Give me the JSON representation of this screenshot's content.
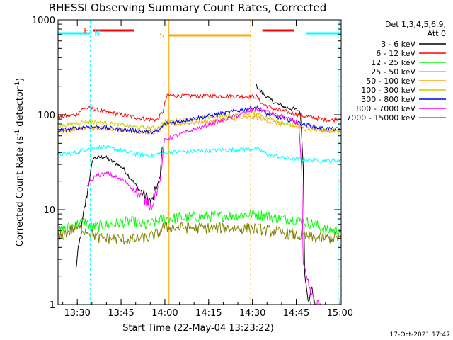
{
  "chart_data": {
    "type": "line",
    "title": "RHESSI Observing Summary Count Rates, Corrected",
    "xlabel": "Start Time (22-May-04 13:23:22)",
    "ylabel_main": "Corrected Count Rate (s",
    "ylabel_exp1": "-1",
    "ylabel_mid": " detector",
    "ylabel_exp2": "-1",
    "ylabel_end": ")",
    "yscale": "log",
    "ylim": [
      1,
      1000
    ],
    "xlim_minutes": [
      0,
      97
    ],
    "x_unit": "minutes since 13:23:22",
    "x_ticks": [
      {
        "label": "13:30",
        "value": 6.6
      },
      {
        "label": "13:45",
        "value": 21.6
      },
      {
        "label": "14:00",
        "value": 36.6
      },
      {
        "label": "14:15",
        "value": 51.6
      },
      {
        "label": "14:30",
        "value": 66.6
      },
      {
        "label": "14:45",
        "value": 81.6
      },
      {
        "label": "15:00",
        "value": 96.6
      }
    ],
    "y_ticks": [
      {
        "label": "1",
        "value": 1
      },
      {
        "label": "10",
        "value": 10
      },
      {
        "label": "100",
        "value": 100
      },
      {
        "label": "1000",
        "value": 1000
      }
    ],
    "legend_header": [
      "Det 1,3,4,5,6,9,",
      "Att 0"
    ],
    "legend_position": "right",
    "series": [
      {
        "name": "3 - 6 keV",
        "color": "#000000",
        "x": [
          0,
          6,
          9,
          12,
          16,
          22,
          28,
          32,
          35,
          36,
          37,
          68,
          70,
          72,
          75,
          78,
          82,
          83,
          84,
          84.5,
          85,
          86,
          87,
          88
        ],
        "y": [
          null,
          2.3,
          10,
          35,
          36,
          28,
          16,
          12,
          22,
          70,
          null,
          200,
          170,
          150,
          130,
          120,
          112,
          108,
          30,
          2.2,
          1.8,
          1,
          1.6,
          1
        ]
      },
      {
        "name": "6 - 12 keV",
        "color": "#ff0000",
        "x": [
          0,
          6,
          9,
          12,
          16,
          22,
          28,
          34,
          36,
          37.3,
          68,
          70,
          74,
          78,
          82,
          86,
          90,
          94,
          97
        ],
        "y": [
          95,
          100,
          118,
          115,
          108,
          100,
          92,
          88,
          110,
          160,
          155,
          130,
          115,
          108,
          100,
          95,
          90,
          88,
          92
        ]
      },
      {
        "name": "12 - 25 keV",
        "color": "#00ff00",
        "x": [
          0,
          6,
          9,
          12,
          18,
          25,
          30,
          34,
          36,
          68,
          72,
          76,
          80,
          84,
          88,
          90,
          92,
          97
        ],
        "y": [
          5.8,
          7,
          7.5,
          6.5,
          7,
          7.5,
          6.8,
          7.5,
          8,
          9,
          8.5,
          8,
          8,
          7.5,
          7,
          6.5,
          6,
          6.2
        ]
      },
      {
        "name": "25 - 50 keV",
        "color": "#00ffff",
        "x": [
          0,
          6,
          10,
          15,
          20,
          26,
          32,
          36,
          68,
          72,
          78,
          84,
          90,
          97
        ],
        "y": [
          38,
          40,
          44,
          46,
          43,
          39,
          37,
          40,
          44,
          38,
          35,
          34,
          33,
          33
        ]
      },
      {
        "name": "50 - 100 keV",
        "color": "#ffa500",
        "x": [
          0,
          6,
          10,
          16,
          22,
          28,
          34,
          36.5,
          68,
          72,
          78,
          84,
          90,
          97
        ],
        "y": [
          66,
          70,
          73,
          72,
          70,
          66,
          65,
          78,
          95,
          85,
          78,
          72,
          68,
          66
        ]
      },
      {
        "name": "100 - 300 keV",
        "color": "#cccc00",
        "x": [
          0,
          6,
          10,
          16,
          22,
          28,
          34,
          36.5,
          68,
          72,
          78,
          84,
          90,
          97
        ],
        "y": [
          75,
          82,
          85,
          82,
          78,
          73,
          72,
          85,
          105,
          92,
          82,
          76,
          70,
          68
        ]
      },
      {
        "name": "300 - 800 keV",
        "color": "#0000ff",
        "x": [
          0,
          6,
          10,
          16,
          22,
          28,
          34,
          36.5,
          68,
          72,
          78,
          84,
          90,
          97
        ],
        "y": [
          68,
          72,
          75,
          73,
          70,
          67,
          66,
          80,
          120,
          100,
          90,
          80,
          72,
          70
        ]
      },
      {
        "name": "800 - 7000 keV",
        "color": "#ff00ff",
        "x": [
          8,
          10,
          13,
          17,
          23,
          28,
          32,
          35,
          36.5,
          68,
          71,
          75,
          78,
          81,
          82.5,
          83.5,
          84,
          86,
          88,
          90
        ],
        "y": [
          null,
          18,
          23,
          24,
          20,
          14,
          11,
          20,
          55,
          115,
          110,
          100,
          92,
          85,
          80,
          25,
          2.5,
          1.5,
          1,
          1
        ]
      },
      {
        "name": "7000 - 15000 keV",
        "color": "#808000",
        "x": [
          0,
          6,
          10,
          14,
          18,
          24,
          30,
          34,
          36,
          68,
          72,
          76,
          80,
          84,
          88,
          92,
          97
        ],
        "y": [
          5,
          6.5,
          6,
          5,
          5,
          4.8,
          5,
          5.5,
          6.5,
          6.3,
          6,
          5.7,
          5.5,
          5.2,
          5,
          5,
          5.1
        ]
      }
    ],
    "bars": [
      {
        "label": "N",
        "color": "#00ffff",
        "x0": 0,
        "x1": 11,
        "level": 1.7,
        "label_at": "end"
      },
      {
        "label": "F",
        "color": "#ff0000",
        "x0": 12,
        "x1": 26,
        "level": 1.3,
        "label_at": "start"
      },
      {
        "label": "S",
        "color": "#ffa500",
        "x0": 38,
        "x1": 66,
        "level": 2.0,
        "label_at": "start"
      },
      {
        "label": "",
        "color": "#ff0000",
        "x0": 70,
        "x1": 81,
        "level": 1.3,
        "label_at": "none"
      },
      {
        "label": "",
        "color": "#00ffff",
        "x0": 85,
        "x1": 97,
        "level": 1.7,
        "label_at": "none"
      }
    ],
    "vlines": [
      {
        "x": 11,
        "color": "#00ffff",
        "style": "dashed"
      },
      {
        "x": 38,
        "color": "#ffa500",
        "style": "solid"
      },
      {
        "x": 66,
        "color": "#ffa500",
        "style": "dashed"
      },
      {
        "x": 85,
        "color": "#00ffff",
        "style": "solid"
      },
      {
        "x": 96,
        "color": "#00ffff",
        "style": "dashed"
      }
    ],
    "footer_date": "17-Oct-2021 17:47"
  }
}
